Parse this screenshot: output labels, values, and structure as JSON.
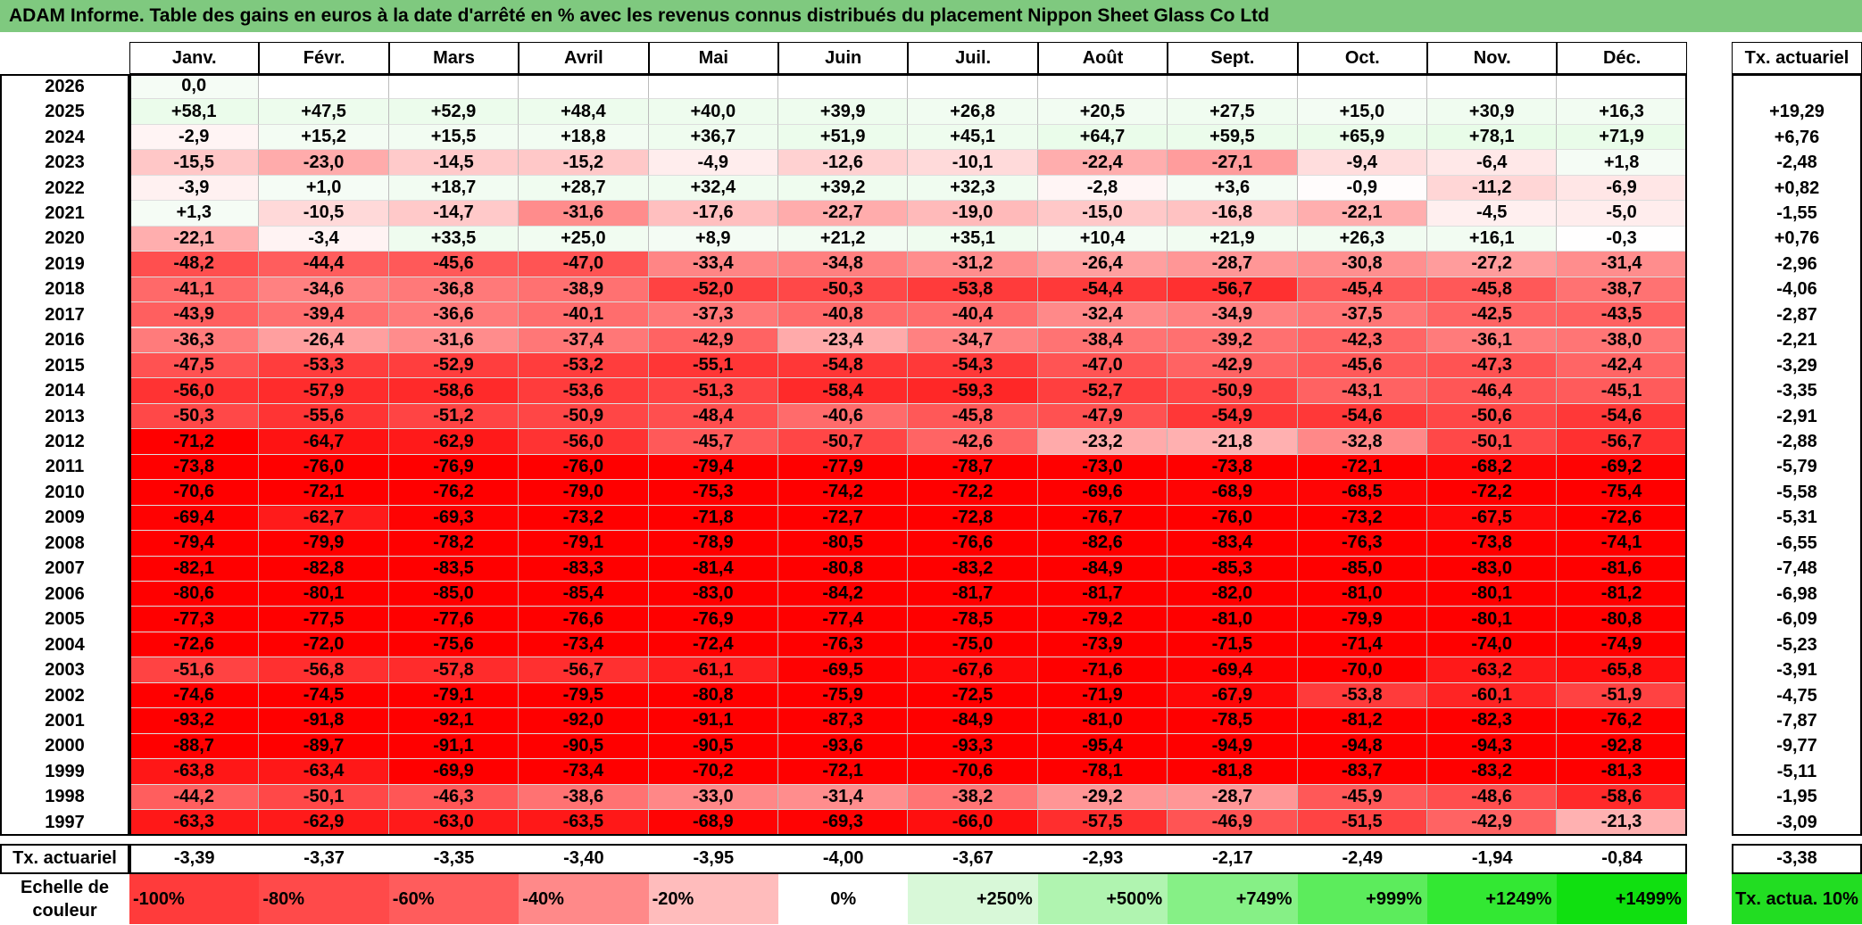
{
  "title": "ADAM Informe. Table des gains en euros à la date d'arrêté en % avec les revenus connus distribués du placement Nippon Sheet Glass Co Ltd",
  "chart_data": {
    "type": "heatmap",
    "title": "ADAM Informe. Table des gains en euros à la date d'arrêté en % avec les revenus connus distribués du placement Nippon Sheet Glass Co Ltd",
    "columns": [
      "Janv.",
      "Févr.",
      "Mars",
      "Avril",
      "Mai",
      "Juin",
      "Juil.",
      "Août",
      "Sept.",
      "Oct.",
      "Nov.",
      "Déc."
    ],
    "summary_column_label": "Tx. actuariel",
    "rows": [
      {
        "year": "2026",
        "values": [
          "0,0",
          "",
          "",
          "",
          "",
          "",
          "",
          "",
          "",
          "",
          "",
          ""
        ],
        "tx": ""
      },
      {
        "year": "2025",
        "values": [
          "+58,1",
          "+47,5",
          "+52,9",
          "+48,4",
          "+40,0",
          "+39,9",
          "+26,8",
          "+20,5",
          "+27,5",
          "+15,0",
          "+30,9",
          "+16,3"
        ],
        "tx": "+19,29"
      },
      {
        "year": "2024",
        "values": [
          "-2,9",
          "+15,2",
          "+15,5",
          "+18,8",
          "+36,7",
          "+51,9",
          "+45,1",
          "+64,7",
          "+59,5",
          "+65,9",
          "+78,1",
          "+71,9"
        ],
        "tx": "+6,76"
      },
      {
        "year": "2023",
        "values": [
          "-15,5",
          "-23,0",
          "-14,5",
          "-15,2",
          "-4,9",
          "-12,6",
          "-10,1",
          "-22,4",
          "-27,1",
          "-9,4",
          "-6,4",
          "+1,8"
        ],
        "tx": "-2,48"
      },
      {
        "year": "2022",
        "values": [
          "-3,9",
          "+1,0",
          "+18,7",
          "+28,7",
          "+32,4",
          "+39,2",
          "+32,3",
          "-2,8",
          "+3,6",
          "-0,9",
          "-11,2",
          "-6,9"
        ],
        "tx": "+0,82"
      },
      {
        "year": "2021",
        "values": [
          "+1,3",
          "-10,5",
          "-14,7",
          "-31,6",
          "-17,6",
          "-22,7",
          "-19,0",
          "-15,0",
          "-16,8",
          "-22,1",
          "-4,5",
          "-5,0"
        ],
        "tx": "-1,55"
      },
      {
        "year": "2020",
        "values": [
          "-22,1",
          "-3,4",
          "+33,5",
          "+25,0",
          "+8,9",
          "+21,2",
          "+35,1",
          "+10,4",
          "+21,9",
          "+26,3",
          "+16,1",
          "-0,3"
        ],
        "tx": "+0,76"
      },
      {
        "year": "2019",
        "values": [
          "-48,2",
          "-44,4",
          "-45,6",
          "-47,0",
          "-33,4",
          "-34,8",
          "-31,2",
          "-26,4",
          "-28,7",
          "-30,8",
          "-27,2",
          "-31,4"
        ],
        "tx": "-2,96"
      },
      {
        "year": "2018",
        "values": [
          "-41,1",
          "-34,6",
          "-36,8",
          "-38,9",
          "-52,0",
          "-50,3",
          "-53,8",
          "-54,4",
          "-56,7",
          "-45,4",
          "-45,8",
          "-38,7"
        ],
        "tx": "-4,06"
      },
      {
        "year": "2017",
        "values": [
          "-43,9",
          "-39,4",
          "-36,6",
          "-40,1",
          "-37,3",
          "-40,8",
          "-40,4",
          "-32,4",
          "-34,9",
          "-37,5",
          "-42,5",
          "-43,5"
        ],
        "tx": "-2,87"
      },
      {
        "year": "2016",
        "values": [
          "-36,3",
          "-26,4",
          "-31,6",
          "-37,4",
          "-42,9",
          "-23,4",
          "-34,7",
          "-38,4",
          "-39,2",
          "-42,3",
          "-36,1",
          "-38,0"
        ],
        "tx": "-2,21"
      },
      {
        "year": "2015",
        "values": [
          "-47,5",
          "-53,3",
          "-52,9",
          "-53,2",
          "-55,1",
          "-54,8",
          "-54,3",
          "-47,0",
          "-42,9",
          "-45,6",
          "-47,3",
          "-42,4"
        ],
        "tx": "-3,29"
      },
      {
        "year": "2014",
        "values": [
          "-56,0",
          "-57,9",
          "-58,6",
          "-53,6",
          "-51,3",
          "-58,4",
          "-59,3",
          "-52,7",
          "-50,9",
          "-43,1",
          "-46,4",
          "-45,1"
        ],
        "tx": "-3,35"
      },
      {
        "year": "2013",
        "values": [
          "-50,3",
          "-55,6",
          "-51,2",
          "-50,9",
          "-48,4",
          "-40,6",
          "-45,8",
          "-47,9",
          "-54,9",
          "-54,6",
          "-50,6",
          "-54,6"
        ],
        "tx": "-2,91"
      },
      {
        "year": "2012",
        "values": [
          "-71,2",
          "-64,7",
          "-62,9",
          "-56,0",
          "-45,7",
          "-50,7",
          "-42,6",
          "-23,2",
          "-21,8",
          "-32,8",
          "-50,1",
          "-56,7"
        ],
        "tx": "-2,88"
      },
      {
        "year": "2011",
        "values": [
          "-73,8",
          "-76,0",
          "-76,9",
          "-76,0",
          "-79,4",
          "-77,9",
          "-78,7",
          "-73,0",
          "-73,8",
          "-72,1",
          "-68,2",
          "-69,2"
        ],
        "tx": "-5,79"
      },
      {
        "year": "2010",
        "values": [
          "-70,6",
          "-72,1",
          "-76,2",
          "-79,0",
          "-75,3",
          "-74,2",
          "-72,2",
          "-69,6",
          "-68,9",
          "-68,5",
          "-72,2",
          "-75,4"
        ],
        "tx": "-5,58"
      },
      {
        "year": "2009",
        "values": [
          "-69,4",
          "-62,7",
          "-69,3",
          "-73,2",
          "-71,8",
          "-72,7",
          "-72,8",
          "-76,7",
          "-76,0",
          "-73,2",
          "-67,5",
          "-72,6"
        ],
        "tx": "-5,31"
      },
      {
        "year": "2008",
        "values": [
          "-79,4",
          "-79,9",
          "-78,2",
          "-79,1",
          "-78,9",
          "-80,5",
          "-76,6",
          "-82,6",
          "-83,4",
          "-76,3",
          "-73,8",
          "-74,1"
        ],
        "tx": "-6,55"
      },
      {
        "year": "2007",
        "values": [
          "-82,1",
          "-82,8",
          "-83,5",
          "-83,3",
          "-81,4",
          "-80,8",
          "-83,2",
          "-84,9",
          "-85,3",
          "-85,0",
          "-83,0",
          "-81,6"
        ],
        "tx": "-7,48"
      },
      {
        "year": "2006",
        "values": [
          "-80,6",
          "-80,1",
          "-85,0",
          "-85,4",
          "-83,0",
          "-84,2",
          "-81,7",
          "-81,7",
          "-82,0",
          "-81,0",
          "-80,1",
          "-81,2"
        ],
        "tx": "-6,98"
      },
      {
        "year": "2005",
        "values": [
          "-77,3",
          "-77,5",
          "-77,6",
          "-76,6",
          "-76,9",
          "-77,4",
          "-78,5",
          "-79,2",
          "-81,0",
          "-79,9",
          "-80,1",
          "-80,8"
        ],
        "tx": "-6,09"
      },
      {
        "year": "2004",
        "values": [
          "-72,6",
          "-72,0",
          "-75,6",
          "-73,4",
          "-72,4",
          "-76,3",
          "-75,0",
          "-73,9",
          "-71,5",
          "-71,4",
          "-74,0",
          "-74,9"
        ],
        "tx": "-5,23"
      },
      {
        "year": "2003",
        "values": [
          "-51,6",
          "-56,8",
          "-57,8",
          "-56,7",
          "-61,1",
          "-69,5",
          "-67,6",
          "-71,6",
          "-69,4",
          "-70,0",
          "-63,2",
          "-65,8"
        ],
        "tx": "-3,91"
      },
      {
        "year": "2002",
        "values": [
          "-74,6",
          "-74,5",
          "-79,1",
          "-79,5",
          "-80,8",
          "-75,9",
          "-72,5",
          "-71,9",
          "-67,9",
          "-53,8",
          "-60,1",
          "-51,9"
        ],
        "tx": "-4,75"
      },
      {
        "year": "2001",
        "values": [
          "-93,2",
          "-91,8",
          "-92,1",
          "-92,0",
          "-91,1",
          "-87,3",
          "-84,9",
          "-81,0",
          "-78,5",
          "-81,2",
          "-82,3",
          "-76,2"
        ],
        "tx": "-7,87"
      },
      {
        "year": "2000",
        "values": [
          "-88,7",
          "-89,7",
          "-91,1",
          "-90,5",
          "-90,5",
          "-93,6",
          "-93,3",
          "-95,4",
          "-94,9",
          "-94,8",
          "-94,3",
          "-92,8"
        ],
        "tx": "-9,77"
      },
      {
        "year": "1999",
        "values": [
          "-63,8",
          "-63,4",
          "-69,9",
          "-73,4",
          "-70,2",
          "-72,1",
          "-70,6",
          "-78,1",
          "-81,8",
          "-83,7",
          "-83,2",
          "-81,3"
        ],
        "tx": "-5,11"
      },
      {
        "year": "1998",
        "values": [
          "-44,2",
          "-50,1",
          "-46,3",
          "-38,6",
          "-33,0",
          "-31,4",
          "-38,2",
          "-29,2",
          "-28,7",
          "-45,9",
          "-48,6",
          "-58,6"
        ],
        "tx": "-1,95"
      },
      {
        "year": "1997",
        "values": [
          "-63,3",
          "-62,9",
          "-63,0",
          "-63,5",
          "-68,9",
          "-69,3",
          "-66,0",
          "-57,5",
          "-46,9",
          "-51,5",
          "-42,9",
          "-21,3"
        ],
        "tx": "-3,09"
      }
    ],
    "footer_row": {
      "label": "Tx. actuariel",
      "values": [
        "-3,39",
        "-3,37",
        "-3,35",
        "-3,40",
        "-3,95",
        "-4,00",
        "-3,67",
        "-2,93",
        "-2,17",
        "-2,49",
        "-1,94",
        "-0,84"
      ],
      "total": "-3,38"
    },
    "color_scale": {
      "label": "Echelle de couleur",
      "stops": [
        {
          "label": "-100%",
          "color": "#ff3b3b"
        },
        {
          "label": "-80%",
          "color": "#ff4a4a"
        },
        {
          "label": "-60%",
          "color": "#ff5c5c"
        },
        {
          "label": "-40%",
          "color": "#ff8989"
        },
        {
          "label": "-20%",
          "color": "#ffbcbc"
        },
        {
          "label": "0%",
          "color": "#ffffff"
        },
        {
          "label": "+250%",
          "color": "#d8f8d8"
        },
        {
          "label": "+500%",
          "color": "#b0f4b0"
        },
        {
          "label": "+749%",
          "color": "#86f086"
        },
        {
          "label": "+999%",
          "color": "#5cec5c"
        },
        {
          "label": "+1249%",
          "color": "#33e833"
        },
        {
          "label": "+1499%",
          "color": "#10e010"
        }
      ],
      "last_label": "Tx. actua. 10%",
      "last_color": "#22dd22"
    },
    "colors": {
      "title_bar": "#7fc97f",
      "negative_max": "#ff0000",
      "positive_max": "#00dd00",
      "neutral": "#ffffff"
    }
  }
}
